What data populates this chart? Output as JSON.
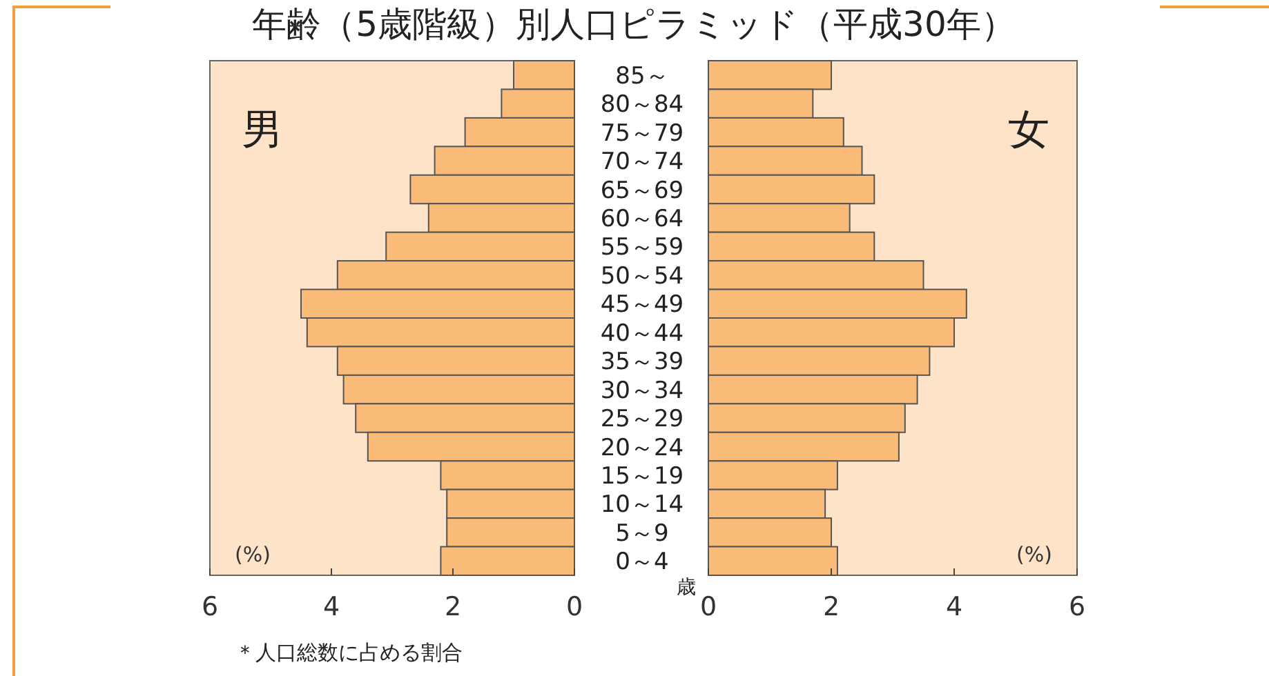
{
  "chart_data": [
    {
      "type": "bar",
      "orientation": "horizontal",
      "title": "年齢（5歳階級）別人口ピラミッド（平成30年）",
      "xlabel": "(%)",
      "ylabel": "歳",
      "annotations": [
        "男",
        "＊人口総数に占める割合"
      ],
      "categories": [
        "85～",
        "80～84",
        "75～79",
        "70～74",
        "65～69",
        "60～64",
        "55～59",
        "50～54",
        "45～49",
        "40～44",
        "35～39",
        "30～34",
        "25～29",
        "20～24",
        "15～19",
        "10～14",
        "5～9",
        "0～4"
      ],
      "series": [
        {
          "color": "#fbbb78",
          "values": [
            1.0,
            1.2,
            1.8,
            2.3,
            2.7,
            2.4,
            3.1,
            3.9,
            4.5,
            4.4,
            3.9,
            3.8,
            3.6,
            3.4,
            2.2,
            2.1,
            2.1,
            2.2
          ]
        }
      ],
      "xlim": [
        6,
        0
      ],
      "xticks": [
        6,
        4,
        2,
        0
      ],
      "grid": false
    },
    {
      "type": "bar",
      "orientation": "horizontal",
      "xlabel": "(%)",
      "annotations": [
        "女"
      ],
      "categories": [
        null,
        null,
        null,
        null,
        null,
        null,
        null,
        null,
        null,
        null,
        null,
        null,
        null,
        null,
        null,
        null,
        null,
        null
      ],
      "series": [
        {
          "color": "#fbbb78",
          "values": [
            2.0,
            1.7,
            2.2,
            2.5,
            2.7,
            2.3,
            2.7,
            3.5,
            4.2,
            4.0,
            3.6,
            3.4,
            3.2,
            3.1,
            2.1,
            1.9,
            2.0,
            2.1
          ]
        }
      ],
      "xlim": [
        0,
        6
      ],
      "xticks": [
        0,
        2,
        4,
        6
      ],
      "tick_labels": "x",
      "grid": false
    }
  ]
}
